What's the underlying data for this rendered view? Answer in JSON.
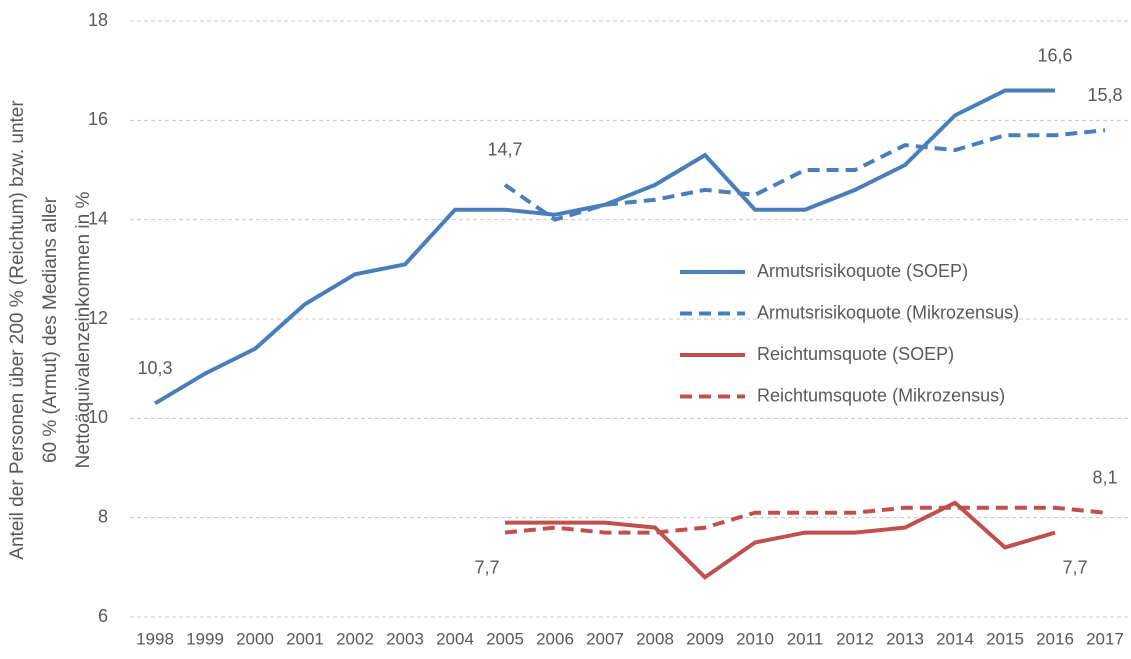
{
  "chart_data": {
    "type": "line",
    "ylabel": [
      "Anteil der Personen über 200  % (Reichtum) bzw. unter",
      "60  % (Armut) des Medians aller",
      "Nettoäquivalenzeinkommen in  %"
    ],
    "categories": [
      "1998",
      "1999",
      "2000",
      "2001",
      "2002",
      "2003",
      "2004",
      "2005",
      "2006",
      "2007",
      "2008",
      "2009",
      "2010",
      "2011",
      "2012",
      "2013",
      "2014",
      "2015",
      "2016",
      "2017"
    ],
    "ylim": [
      6,
      18
    ],
    "yticks": [
      6,
      8,
      10,
      12,
      14,
      16,
      18
    ],
    "grid": true,
    "legend": "center-right",
    "series": [
      {
        "name": "Armutsrisikoquote (SOEP)",
        "color": "#4a7ebb",
        "linestyle": "solid",
        "values": [
          10.3,
          10.9,
          11.4,
          12.3,
          12.9,
          13.1,
          14.2,
          14.2,
          14.1,
          14.3,
          14.7,
          15.3,
          14.2,
          14.2,
          14.6,
          15.1,
          16.1,
          16.6,
          16.6,
          null
        ],
        "value_labels": [
          "10,3",
          null,
          null,
          null,
          null,
          null,
          null,
          null,
          null,
          null,
          null,
          null,
          null,
          null,
          null,
          null,
          null,
          null,
          "16,6",
          null
        ]
      },
      {
        "name": "Armutsrisikoquote (Mikrozensus)",
        "color": "#4a7ebb",
        "linestyle": "dashed",
        "values": [
          null,
          null,
          null,
          null,
          null,
          null,
          null,
          14.7,
          14.0,
          14.3,
          14.4,
          14.6,
          14.5,
          15.0,
          15.0,
          15.5,
          15.4,
          15.7,
          15.7,
          15.8
        ],
        "value_labels": [
          null,
          null,
          null,
          null,
          null,
          null,
          null,
          "14,7",
          null,
          null,
          null,
          null,
          null,
          null,
          null,
          null,
          null,
          null,
          null,
          "15,8"
        ]
      },
      {
        "name": "Reichtumsquote (SOEP)",
        "color": "#c0504d",
        "linestyle": "solid",
        "values": [
          null,
          null,
          null,
          null,
          null,
          null,
          null,
          7.9,
          7.9,
          7.9,
          7.8,
          6.8,
          7.5,
          7.7,
          7.7,
          7.8,
          8.3,
          7.4,
          7.7,
          null
        ],
        "value_labels": [
          null,
          null,
          null,
          null,
          null,
          null,
          null,
          null,
          null,
          null,
          null,
          null,
          null,
          null,
          null,
          null,
          null,
          null,
          "7,7",
          null
        ]
      },
      {
        "name": "Reichtumsquote (Mikrozensus)",
        "color": "#c0504d",
        "linestyle": "dashed",
        "values": [
          null,
          null,
          null,
          null,
          null,
          null,
          null,
          7.7,
          7.8,
          7.7,
          7.7,
          7.8,
          8.1,
          8.1,
          8.1,
          8.2,
          8.2,
          8.2,
          8.2,
          8.1
        ],
        "value_labels": [
          null,
          null,
          null,
          null,
          null,
          null,
          null,
          "7,7",
          null,
          null,
          null,
          null,
          null,
          null,
          null,
          null,
          null,
          null,
          null,
          "8,1"
        ]
      }
    ]
  }
}
